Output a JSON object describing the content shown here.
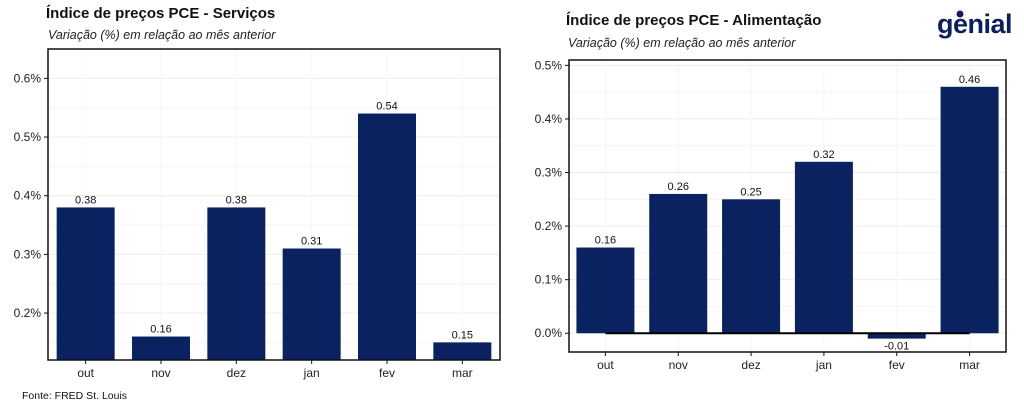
{
  "brand": {
    "logo_text": "genial",
    "color": "#0c1e5b"
  },
  "source": "Fonte: FRED St. Louis",
  "colors": {
    "bar": "#0b2260",
    "grid": "#ececec",
    "axis": "#111111",
    "zero_line": "#000000"
  },
  "chart_data": [
    {
      "type": "bar",
      "title": "Índice de preços PCE - Serviços",
      "subtitle": "Variação (%) em relação ao mês anterior",
      "categories": [
        "out",
        "nov",
        "dez",
        "jan",
        "fev",
        "mar"
      ],
      "values": [
        0.38,
        0.16,
        0.38,
        0.31,
        0.54,
        0.15
      ],
      "data_labels": [
        "0.38",
        "0.16",
        "0.38",
        "0.31",
        "0.54",
        "0.15"
      ],
      "ylim": [
        0.12,
        0.65
      ],
      "yticks": [
        0.2,
        0.3,
        0.4,
        0.5,
        0.6
      ],
      "ytick_labels": [
        "0.2%",
        "0.3%",
        "0.4%",
        "0.5%",
        "0.6%"
      ],
      "grid": true
    },
    {
      "type": "bar",
      "title": "Índice de preços PCE - Alimentação",
      "subtitle": "Variação (%) em relação ao mês anterior",
      "categories": [
        "out",
        "nov",
        "dez",
        "jan",
        "fev",
        "mar"
      ],
      "values": [
        0.16,
        0.26,
        0.25,
        0.32,
        -0.01,
        0.46
      ],
      "data_labels": [
        "0.16",
        "0.26",
        "0.25",
        "0.32",
        "-0.01",
        "0.46"
      ],
      "ylim": [
        -0.035,
        0.51
      ],
      "yticks": [
        0.0,
        0.1,
        0.2,
        0.3,
        0.4,
        0.5
      ],
      "ytick_labels": [
        "0.0%",
        "0.1%",
        "0.2%",
        "0.3%",
        "0.4%",
        "0.5%"
      ],
      "grid": true,
      "zero_line": true
    }
  ]
}
